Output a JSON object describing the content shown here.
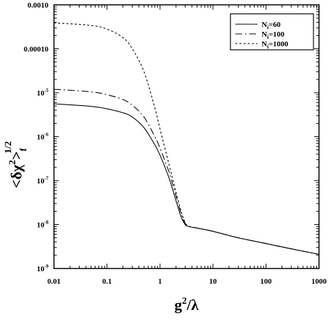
{
  "chart_data": {
    "type": "line",
    "xscale": "log",
    "yscale": "log",
    "xlim": [
      0.01,
      1000
    ],
    "ylim": [
      1e-09,
      0.001
    ],
    "xlabel": {
      "base": "g",
      "sup": "2",
      "rest": "/λ"
    },
    "ylabel": {
      "text": "<δχ",
      "sup1": "2",
      "close": ">",
      "sub": "f",
      "sup2": "1/2"
    },
    "xticks": [
      {
        "value": 0.01,
        "label": "0.01"
      },
      {
        "value": 0.1,
        "label": "0.1"
      },
      {
        "value": 1,
        "label": "1"
      },
      {
        "value": 10,
        "label": "10"
      },
      {
        "value": 100,
        "label": "100"
      },
      {
        "value": 1000,
        "label": "1000"
      }
    ],
    "yticks": [
      {
        "value": 0.001,
        "label": "0.0010",
        "mant": "",
        "exp": ""
      },
      {
        "value": 0.0001,
        "label": "0.00010",
        "mant": "",
        "exp": ""
      },
      {
        "value": 1e-05,
        "label": "",
        "mant": "10",
        "exp": "-5"
      },
      {
        "value": 1e-06,
        "label": "",
        "mant": "10",
        "exp": "-6"
      },
      {
        "value": 1e-07,
        "label": "",
        "mant": "10",
        "exp": "-7"
      },
      {
        "value": 1e-08,
        "label": "",
        "mant": "10",
        "exp": "-8"
      },
      {
        "value": 1e-09,
        "label": "",
        "mant": "10",
        "exp": "-9"
      }
    ],
    "legend_position": "top-right",
    "grid": false,
    "series": [
      {
        "name": "60",
        "dash": "solid",
        "points": [
          [
            0.01,
            5.6e-06
          ],
          [
            0.05,
            4.9e-06
          ],
          [
            0.1,
            4.3e-06
          ],
          [
            0.2,
            3.5e-06
          ],
          [
            0.3,
            2.8e-06
          ],
          [
            0.5,
            1.6e-06
          ],
          [
            0.8,
            6.5e-07
          ],
          [
            1.0,
            3.8e-07
          ],
          [
            1.5,
            1.1e-07
          ],
          [
            2.0,
            3.5e-08
          ],
          [
            2.5,
            1.5e-08
          ],
          [
            3.0,
            1e-08
          ],
          [
            3.5,
            9e-09
          ],
          [
            5,
            8.3e-09
          ],
          [
            10,
            7e-09
          ],
          [
            30,
            5e-09
          ],
          [
            100,
            3.7e-09
          ],
          [
            300,
            2.8e-09
          ],
          [
            1000,
            2.1e-09
          ]
        ]
      },
      {
        "name": "100",
        "dash": "dashdot",
        "points": [
          [
            0.01,
            1.2e-05
          ],
          [
            0.05,
            1.05e-05
          ],
          [
            0.1,
            9e-06
          ],
          [
            0.2,
            7e-06
          ],
          [
            0.3,
            5.2e-06
          ],
          [
            0.5,
            2.8e-06
          ],
          [
            0.8,
            1e-06
          ],
          [
            1.0,
            5.5e-07
          ],
          [
            1.5,
            1.5e-07
          ],
          [
            2.0,
            4.5e-08
          ],
          [
            2.5,
            1.8e-08
          ],
          [
            3.0,
            1.05e-08
          ],
          [
            3.5,
            9.1e-09
          ],
          [
            5,
            8.3e-09
          ],
          [
            10,
            7e-09
          ],
          [
            30,
            5e-09
          ],
          [
            100,
            3.7e-09
          ],
          [
            300,
            2.8e-09
          ],
          [
            1000,
            2.1e-09
          ]
        ]
      },
      {
        "name": "1000",
        "dash": "dashed",
        "points": [
          [
            0.01,
            0.00039
          ],
          [
            0.05,
            0.00034
          ],
          [
            0.1,
            0.00028
          ],
          [
            0.2,
            0.00018
          ],
          [
            0.3,
            0.0001
          ],
          [
            0.5,
            3e-05
          ],
          [
            0.8,
            4.5e-06
          ],
          [
            1.0,
            1.5e-06
          ],
          [
            1.5,
            2.2e-07
          ],
          [
            2.0,
            5.5e-08
          ],
          [
            2.5,
            2e-08
          ],
          [
            3.0,
            1.1e-08
          ],
          [
            3.5,
            9.2e-09
          ],
          [
            5,
            8.3e-09
          ],
          [
            10,
            7e-09
          ],
          [
            30,
            5e-09
          ],
          [
            100,
            3.7e-09
          ],
          [
            300,
            2.8e-09
          ],
          [
            1000,
            2.1e-09
          ]
        ]
      }
    ],
    "legend_prefix": {
      "main": "N",
      "sub": "i",
      "eq": "="
    }
  }
}
